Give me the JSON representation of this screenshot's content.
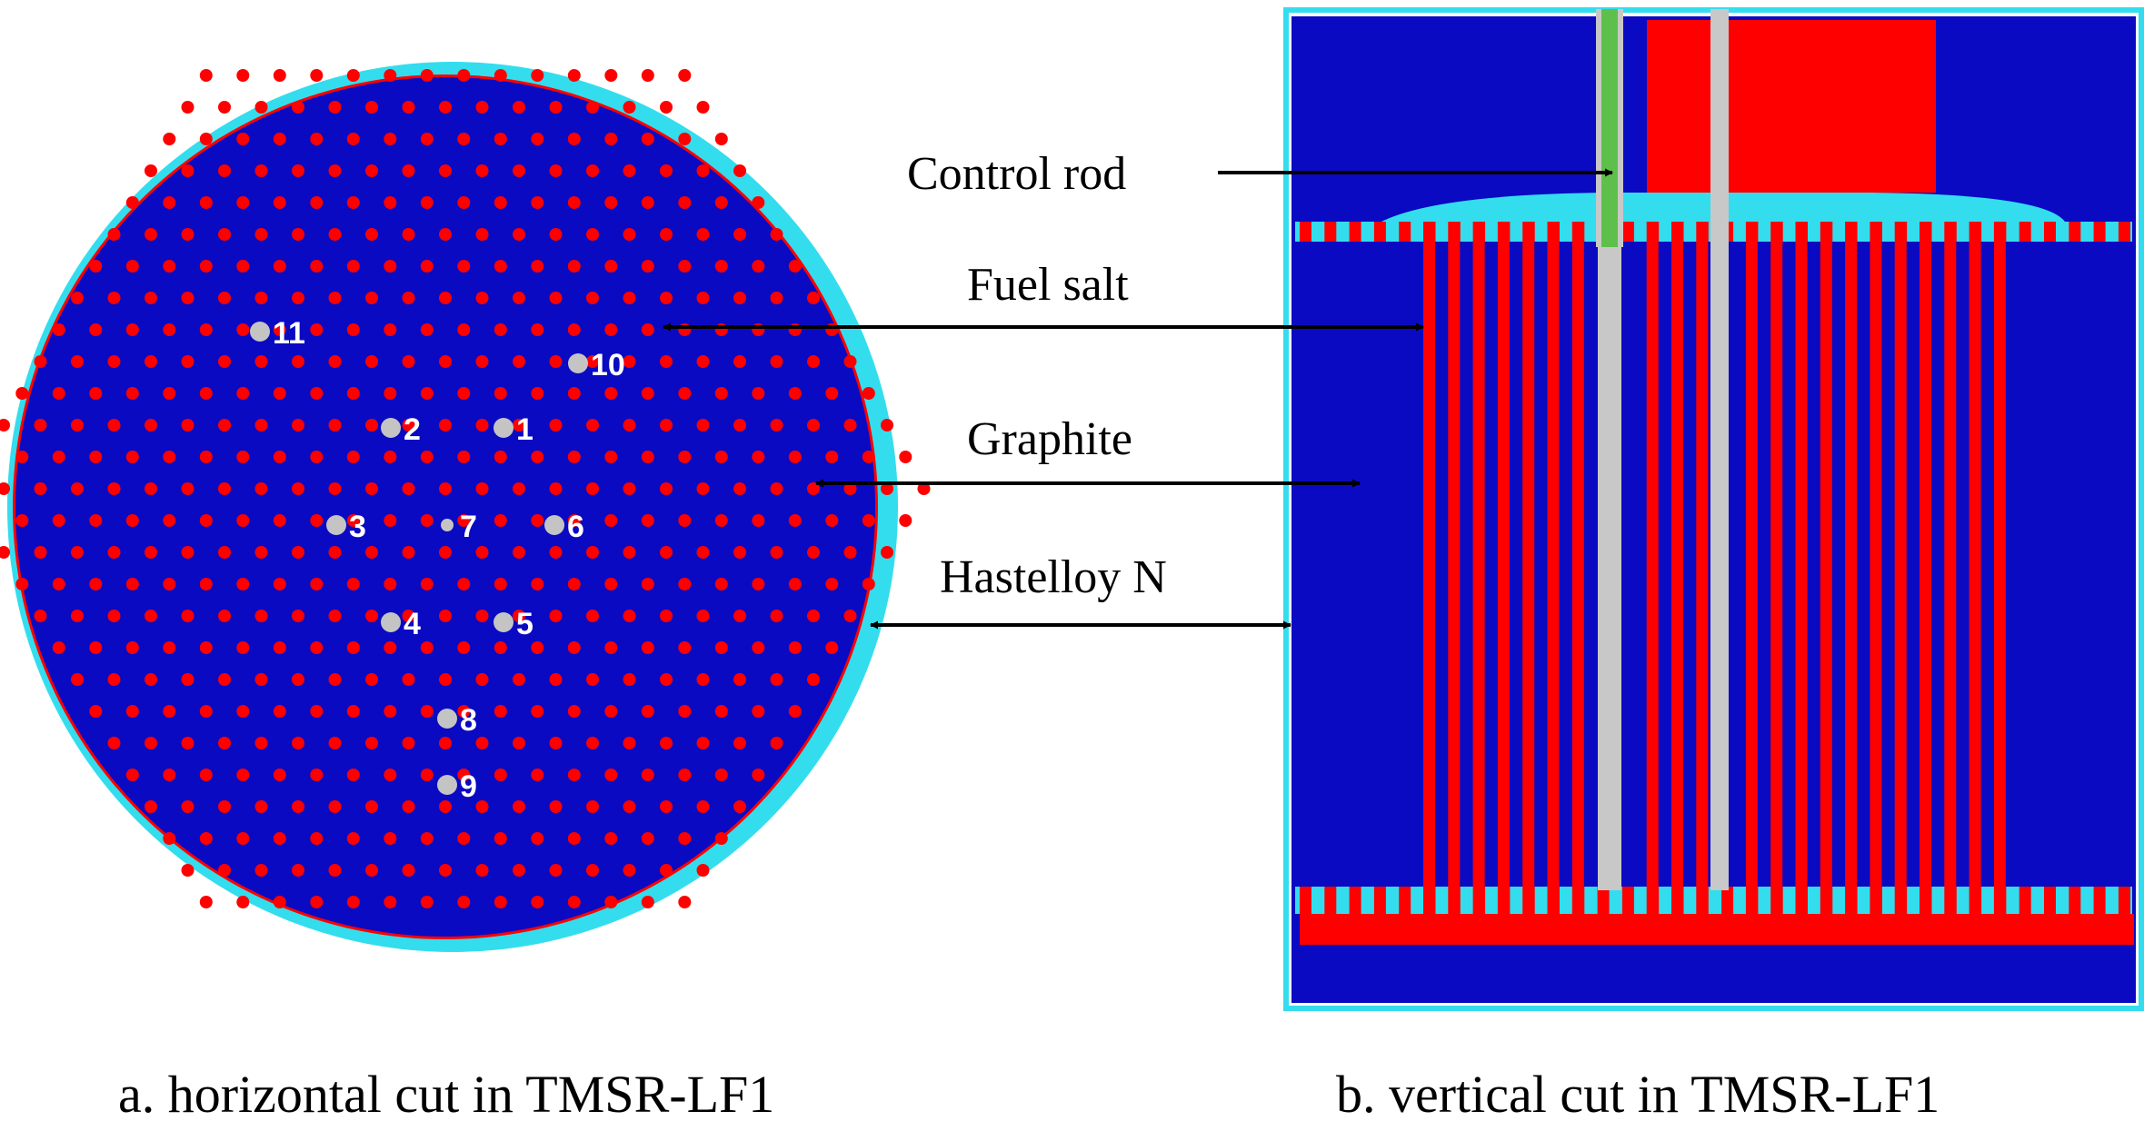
{
  "colors": {
    "fuel_salt": "#0a0ac2",
    "graphite": "#ff0000",
    "hastelloy": "#33ddee",
    "control_rod": "#c8c8c8",
    "control_rod_inner": "#5ec04a",
    "marker": "#c4c4c4"
  },
  "callouts": {
    "control_rod": "Control rod",
    "fuel_salt": "Fuel salt",
    "graphite": "Graphite",
    "hastelloy": "Hastelloy N"
  },
  "captions": {
    "left": "a. horizontal cut in TMSR-LF1",
    "right": "b. vertical cut in TMSR-LF1"
  },
  "channel_markers": [
    "1",
    "2",
    "3",
    "4",
    "5",
    "6",
    "7",
    "8",
    "9",
    "10",
    "11"
  ]
}
